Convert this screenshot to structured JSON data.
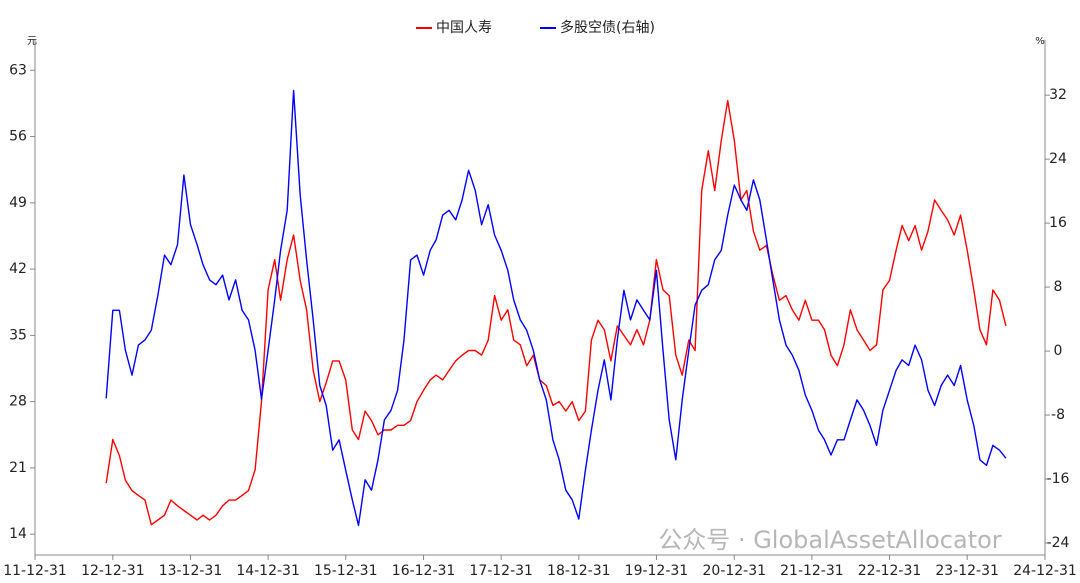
{
  "chart_data": {
    "type": "line",
    "y_unit": "元",
    "y2_unit": "%",
    "watermark": "公众号 · GlobalAssetAllocator",
    "xlim": [
      "11-12-31",
      "24-12-31"
    ],
    "xticks": [
      "11-12-31",
      "12-12-31",
      "13-12-31",
      "14-12-31",
      "15-12-31",
      "16-12-31",
      "17-12-31",
      "18-12-31",
      "19-12-31",
      "20-12-31",
      "21-12-31",
      "22-12-31",
      "23-12-31",
      "24-12-31"
    ],
    "ylim": [
      11.8,
      66.2
    ],
    "yticks": [
      14,
      21,
      28,
      35,
      42,
      49,
      56,
      63
    ],
    "y2lim": [
      -25.5,
      38.9
    ],
    "y2ticks": [
      -24,
      -16,
      -8,
      0,
      8,
      16,
      24,
      32
    ],
    "x": [
      "12-11-30",
      "12-12-31",
      "13-01-31",
      "13-02-28",
      "13-03-31",
      "13-04-30",
      "13-05-31",
      "13-06-30",
      "13-07-31",
      "13-08-31",
      "13-09-30",
      "13-10-31",
      "13-11-30",
      "13-12-31",
      "14-01-31",
      "14-02-28",
      "14-03-31",
      "14-04-30",
      "14-05-31",
      "14-06-30",
      "14-07-31",
      "14-08-31",
      "14-09-30",
      "14-10-31",
      "14-11-30",
      "14-12-31",
      "15-01-31",
      "15-02-28",
      "15-03-31",
      "15-04-30",
      "15-05-31",
      "15-06-30",
      "15-07-31",
      "15-08-31",
      "15-09-30",
      "15-10-31",
      "15-11-30",
      "15-12-31",
      "16-01-31",
      "16-02-29",
      "16-03-31",
      "16-04-30",
      "16-05-31",
      "16-06-30",
      "16-07-31",
      "16-08-31",
      "16-09-30",
      "16-10-31",
      "16-11-30",
      "16-12-31",
      "17-01-31",
      "17-02-28",
      "17-03-31",
      "17-04-30",
      "17-05-31",
      "17-06-30",
      "17-07-31",
      "17-08-31",
      "17-09-30",
      "17-10-31",
      "17-11-30",
      "17-12-31",
      "18-01-31",
      "18-02-28",
      "18-03-31",
      "18-04-30",
      "18-05-31",
      "18-06-30",
      "18-07-31",
      "18-08-31",
      "18-09-30",
      "18-10-31",
      "18-11-30",
      "18-12-31",
      "19-01-31",
      "19-02-28",
      "19-03-31",
      "19-04-30",
      "19-05-31",
      "19-06-30",
      "19-07-31",
      "19-08-31",
      "19-09-30",
      "19-10-31",
      "19-11-30",
      "19-12-31",
      "20-01-31",
      "20-02-29",
      "20-03-31",
      "20-04-30",
      "20-05-31",
      "20-06-30",
      "20-07-31",
      "20-08-31",
      "20-09-30",
      "20-10-31",
      "20-11-30",
      "20-12-31",
      "21-01-31",
      "21-02-28",
      "21-03-31",
      "21-04-30",
      "21-05-31",
      "21-06-30",
      "21-07-31",
      "21-08-31",
      "21-09-30",
      "21-10-31",
      "21-11-30",
      "21-12-31",
      "22-01-31",
      "22-02-28",
      "22-03-31",
      "22-04-30",
      "22-05-31",
      "22-06-30",
      "22-07-31",
      "22-08-31",
      "22-09-30",
      "22-10-31",
      "22-11-30",
      "22-12-31",
      "23-01-31",
      "23-02-28",
      "23-03-31",
      "23-04-30",
      "23-05-31",
      "23-06-30",
      "23-07-31",
      "23-08-31",
      "23-09-30",
      "23-10-31",
      "23-11-30",
      "23-12-31",
      "24-01-31",
      "24-02-29",
      "24-03-31",
      "24-04-30",
      "24-05-31",
      "24-06-30"
    ],
    "series": [
      {
        "name": "中国人寿",
        "color": "#ff0000",
        "values": [
          19.4,
          24,
          22.3,
          19.7,
          18.6,
          18.1,
          17.6,
          15,
          15.5,
          16,
          17.6,
          17,
          16.5,
          16,
          15.5,
          16,
          15.5,
          16,
          17,
          17.6,
          17.6,
          18.1,
          18.6,
          20.8,
          28,
          39.8,
          43,
          38.7,
          43,
          45.6,
          40.8,
          37.7,
          31.3,
          28,
          30,
          32.3,
          32.3,
          30.3,
          25,
          24,
          27,
          26,
          24.5,
          25,
          25,
          25.5,
          25.5,
          26,
          28,
          29.2,
          30.3,
          30.8,
          30.3,
          31.3,
          32.3,
          32.9,
          33.4,
          33.4,
          32.9,
          34.5,
          39.2,
          36.6,
          37.7,
          34.5,
          34,
          31.8,
          32.9,
          30.3,
          29.7,
          27.6,
          28,
          27,
          28,
          26,
          27,
          34.5,
          36.6,
          35.6,
          32.3,
          36,
          35,
          34,
          35.6,
          34,
          36.6,
          43,
          39.8,
          39.2,
          32.9,
          30.8,
          34.5,
          33.4,
          50.3,
          54.5,
          50.3,
          55.6,
          59.8,
          55.6,
          49.3,
          50.3,
          46,
          44,
          44.5,
          41.4,
          38.7,
          39.2,
          37.7,
          36.6,
          38.7,
          36.6,
          36.6,
          35.6,
          32.9,
          31.8,
          34,
          37.7,
          35.6,
          34.5,
          33.4,
          34,
          39.8,
          40.8,
          44,
          46.6,
          45,
          46.6,
          44,
          46,
          49.3,
          48.2,
          47.2,
          45.6,
          47.7,
          44,
          39.8,
          35.6,
          34,
          39.8,
          38.7,
          36
        ]
      },
      {
        "name": "多股空债(右轴)",
        "color": "#0000ff",
        "axis": "y2",
        "values": [
          -5.9,
          5.1,
          5.1,
          0.1,
          -3,
          0.75,
          1.4,
          2.6,
          7,
          12,
          10.8,
          13.3,
          22,
          15.8,
          13.3,
          10.8,
          8.9,
          8.3,
          9.5,
          6.4,
          8.9,
          5.1,
          3.9,
          0.1,
          -6,
          0.1,
          6.4,
          12.6,
          17.6,
          32.6,
          19.5,
          11.4,
          3.9,
          -4.3,
          -6.8,
          -12.4,
          -11.1,
          -14.9,
          -18.6,
          -21.8,
          -16.1,
          -17.4,
          -13.6,
          -8.6,
          -7.4,
          -4.9,
          1.4,
          11.4,
          12,
          9.5,
          12.6,
          13.9,
          17,
          17.6,
          16.4,
          18.9,
          22.6,
          20.1,
          15.8,
          18.3,
          14.5,
          12.6,
          10.1,
          6.4,
          3.9,
          2.6,
          0.1,
          -3.6,
          -6.1,
          -11.1,
          -13.6,
          -17.4,
          -18.6,
          -21,
          -14.9,
          -9.9,
          -4.9,
          -1.1,
          -6.1,
          1.4,
          7.6,
          3.9,
          6.4,
          5.1,
          3.9,
          10.1,
          0.1,
          -8.6,
          -13.6,
          -6.1,
          0.1,
          5.75,
          7.6,
          8.3,
          11.4,
          12.6,
          17,
          20.75,
          18.9,
          17.6,
          21.4,
          18.9,
          13.9,
          8.9,
          3.9,
          0.75,
          -0.5,
          -2.4,
          -5.5,
          -7.4,
          -9.9,
          -11.1,
          -13,
          -11.1,
          -11.1,
          -8.6,
          -6.1,
          -7.4,
          -9.3,
          -11.8,
          -7.4,
          -4.9,
          -2.4,
          -1.1,
          -1.8,
          0.75,
          -1.1,
          -4.9,
          -6.8,
          -4.3,
          -3,
          -4.3,
          -1.8,
          -6.1,
          -9.3,
          -13.6,
          -14.3,
          -11.8,
          -12.4,
          -13.4
        ]
      }
    ]
  }
}
